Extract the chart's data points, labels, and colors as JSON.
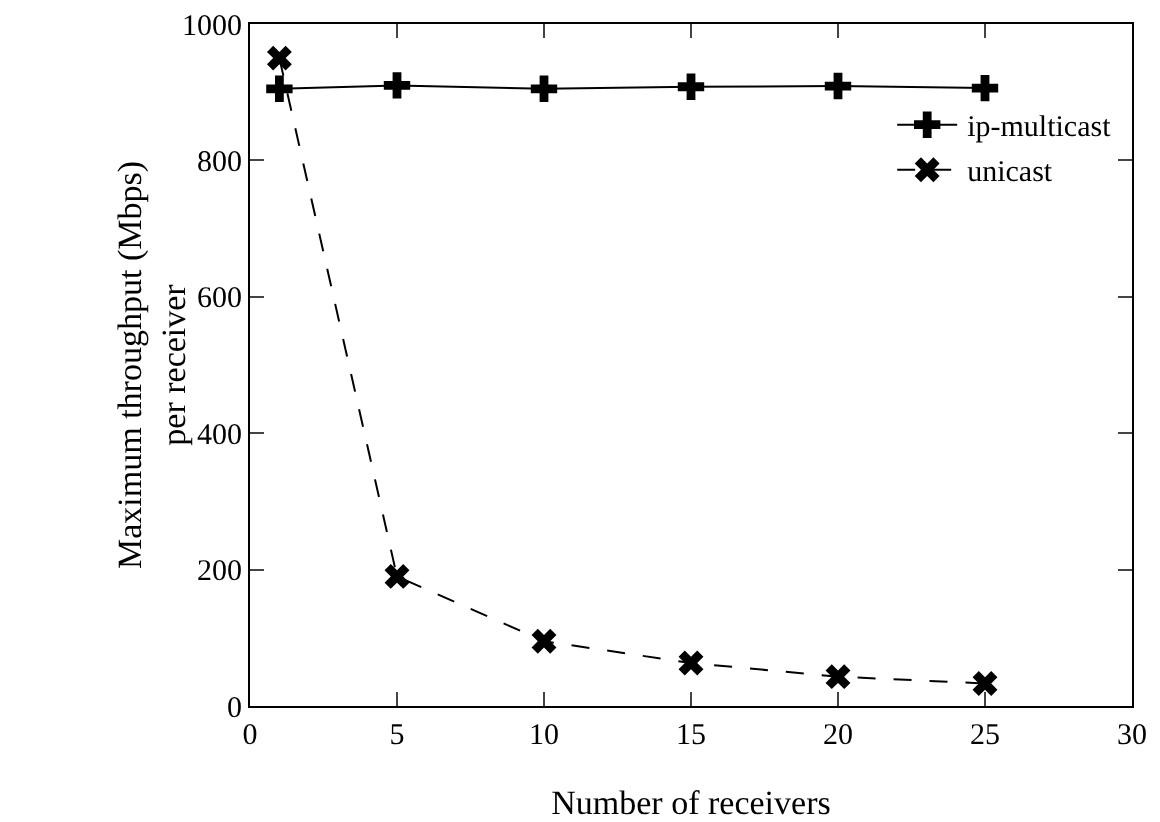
{
  "chart_data": {
    "type": "line",
    "xlabel": "Number of receivers",
    "ylabel": "Maximum throughput (Mbps)\nper receiver",
    "x": [
      1,
      5,
      10,
      15,
      20,
      25
    ],
    "series": [
      {
        "name": "ip-multicast",
        "color": "#000000",
        "values": [
          905,
          910,
          905,
          908,
          909,
          906
        ],
        "marker": "cross",
        "line_style": "solid"
      },
      {
        "name": "unicast",
        "color": "#000000",
        "values": [
          950,
          190,
          95,
          63,
          43,
          33
        ],
        "marker": "x",
        "line_style": "dashed"
      }
    ],
    "xlim": [
      0,
      30
    ],
    "xticks": [
      0,
      5,
      10,
      15,
      20,
      25,
      30
    ],
    "ylim": [
      0,
      1000
    ],
    "yticks": [
      0,
      200,
      400,
      600,
      800,
      1000
    ],
    "grid": false,
    "legend": "top right"
  }
}
